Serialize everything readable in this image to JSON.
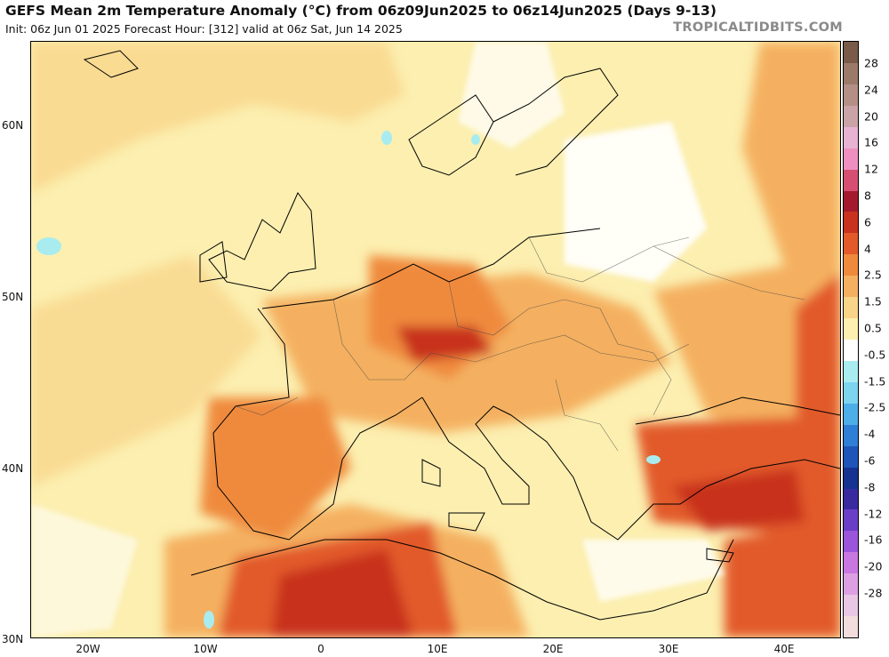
{
  "header": {
    "title": "GEFS Mean 2m Temperature Anomaly (°C) from 06z09Jun2025 to 06z14Jun2025 (Days 9-13)",
    "subtitle": "Init: 06z Jun 01 2025   Forecast Hour: [312]   valid at 06z Sat, Jun 14 2025",
    "brand": "TROPICALTIDBITS.COM"
  },
  "map": {
    "lat_labels": [
      "60N",
      "50N",
      "40N",
      "30N"
    ],
    "lon_labels": [
      "20W",
      "10W",
      "0",
      "10E",
      "20E",
      "30E",
      "40E"
    ]
  },
  "colorbar": {
    "labels": [
      "28",
      "24",
      "20",
      "16",
      "12",
      "8",
      "6",
      "4",
      "2.5",
      "1.5",
      "0.5",
      "-0.5",
      "-1.5",
      "-2.5",
      "-4",
      "-6",
      "-8",
      "-12",
      "-16",
      "-20",
      "-28"
    ],
    "colors": [
      "#7a5a48",
      "#9c7a6a",
      "#b48f86",
      "#c9a3a6",
      "#e8b2d2",
      "#ee8fc0",
      "#d64f72",
      "#a31a2e",
      "#c8321e",
      "#e25a2a",
      "#ef8a3c",
      "#f4b060",
      "#f8d488",
      "#fcefb0",
      "#ffffff",
      "#a8ecf0",
      "#7cd4ee",
      "#4eaee8",
      "#2f7fd6",
      "#1f55b8",
      "#15338f",
      "#3a2aa0",
      "#6a3ec6",
      "#9a55da",
      "#c977e0",
      "#dca0e2",
      "#e8c6e4",
      "#f2dcdc"
    ]
  }
}
